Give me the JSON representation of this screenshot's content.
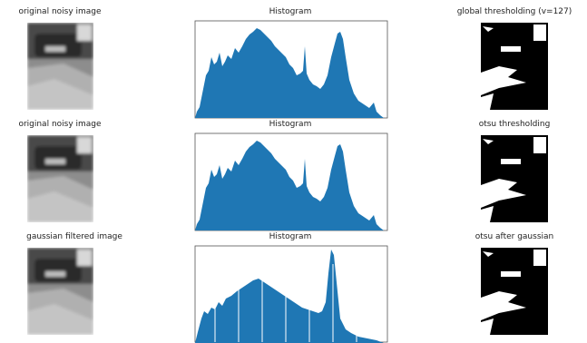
{
  "panels": [
    {
      "title": "original noisy image"
    },
    {
      "title": "Histogram"
    },
    {
      "title": "global thresholding (v=127)"
    },
    {
      "title": "original noisy image"
    },
    {
      "title": "Histogram"
    },
    {
      "title": "otsu thresholding"
    },
    {
      "title": "gaussian filtered image"
    },
    {
      "title": "Histogram"
    },
    {
      "title": "otsu after gaussian"
    }
  ]
}
